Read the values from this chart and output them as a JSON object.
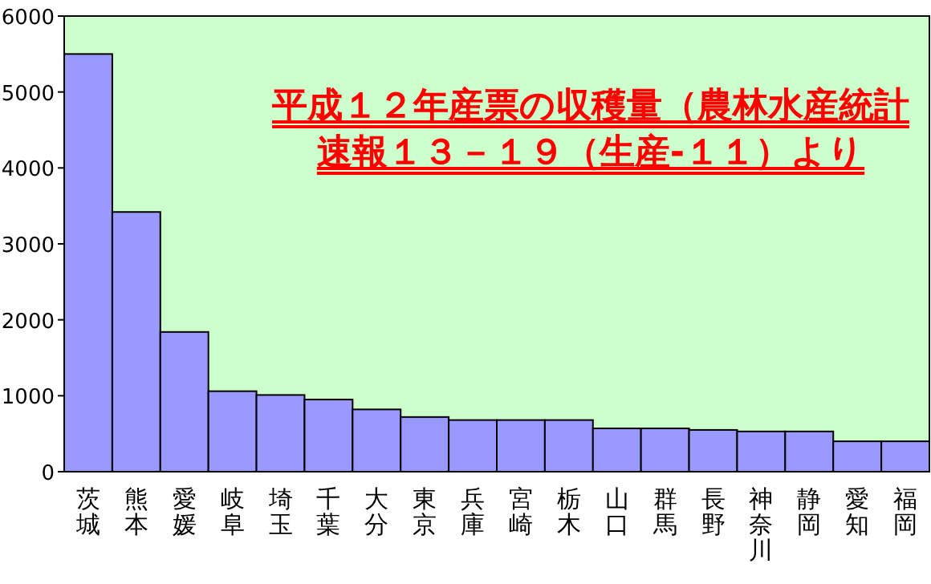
{
  "chart_data": {
    "type": "bar",
    "title": "平成１２年産票の収穫量（農林水産統計速報１３－１９（生産-１１）より",
    "categories": [
      "茨城",
      "熊本",
      "愛媛",
      "岐阜",
      "埼玉",
      "千葉",
      "大分",
      "東京",
      "兵庫",
      "宮崎",
      "栃木",
      "山口",
      "群馬",
      "長野",
      "神奈川",
      "静岡",
      "愛知",
      "福岡"
    ],
    "values": [
      5500,
      3420,
      1840,
      1060,
      1010,
      950,
      820,
      720,
      680,
      680,
      680,
      570,
      570,
      550,
      530,
      530,
      400,
      400
    ],
    "color": "#9999ff",
    "ylim": [
      0,
      6000
    ],
    "yticks": [
      0,
      1000,
      2000,
      3000,
      4000,
      5000,
      6000
    ],
    "grid": false
  }
}
